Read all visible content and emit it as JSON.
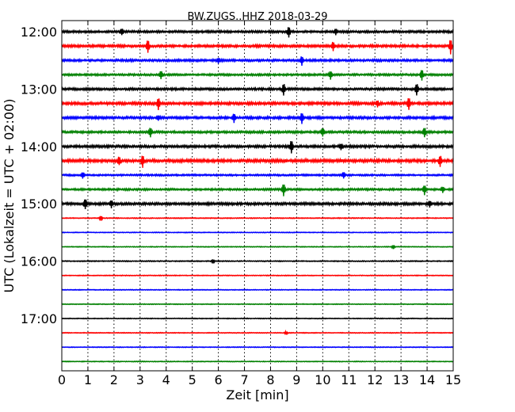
{
  "chart_data": {
    "type": "line",
    "title": "BW.ZUGS..HHZ 2018-03-29",
    "xlabel": "Zeit  [min]",
    "ylabel": "UTC (Lokalzeit = UTC + 02:00)",
    "xlim": [
      0,
      15
    ],
    "xticks": [
      "0",
      "1",
      "2",
      "3",
      "4",
      "5",
      "6",
      "7",
      "8",
      "9",
      "10",
      "11",
      "12",
      "13",
      "14",
      "15"
    ],
    "yticks": [
      "12:00",
      "13:00",
      "14:00",
      "15:00",
      "16:00",
      "17:00"
    ],
    "grid": true,
    "colors": [
      "#000000",
      "#ff0000",
      "#0000ff",
      "#008000"
    ],
    "traces": [
      {
        "start": "12:00",
        "color": "#000000",
        "amp": 0.9,
        "spikes": [
          [
            8.7,
            2.2
          ],
          [
            2.3,
            1.2
          ],
          [
            10.5,
            1.1
          ]
        ]
      },
      {
        "start": "12:15",
        "color": "#ff0000",
        "amp": 1.0,
        "spikes": [
          [
            3.3,
            2.6
          ],
          [
            10.4,
            1.8
          ],
          [
            14.9,
            3.0
          ]
        ]
      },
      {
        "start": "12:30",
        "color": "#0000ff",
        "amp": 0.9,
        "spikes": [
          [
            9.2,
            1.8
          ],
          [
            6.0,
            1.0
          ]
        ]
      },
      {
        "start": "12:45",
        "color": "#008000",
        "amp": 0.8,
        "spikes": [
          [
            3.8,
            1.6
          ],
          [
            10.3,
            1.7
          ],
          [
            13.8,
            2.2
          ]
        ]
      },
      {
        "start": "13:00",
        "color": "#000000",
        "amp": 0.9,
        "spikes": [
          [
            8.5,
            2.4
          ],
          [
            13.6,
            2.4
          ]
        ]
      },
      {
        "start": "13:15",
        "color": "#ff0000",
        "amp": 1.1,
        "spikes": [
          [
            3.7,
            2.4
          ],
          [
            12.1,
            1.3
          ],
          [
            13.3,
            2.4
          ]
        ]
      },
      {
        "start": "13:30",
        "color": "#0000ff",
        "amp": 1.0,
        "spikes": [
          [
            6.6,
            1.8
          ],
          [
            9.2,
            2.2
          ],
          [
            3.7,
            1.0
          ]
        ]
      },
      {
        "start": "13:45",
        "color": "#008000",
        "amp": 0.9,
        "spikes": [
          [
            3.4,
            2.0
          ],
          [
            10.0,
            1.6
          ],
          [
            13.9,
            2.0
          ]
        ]
      },
      {
        "start": "14:00",
        "color": "#000000",
        "amp": 1.0,
        "spikes": [
          [
            8.8,
            2.6
          ],
          [
            10.7,
            1.2
          ]
        ]
      },
      {
        "start": "14:15",
        "color": "#ff0000",
        "amp": 1.2,
        "spikes": [
          [
            3.1,
            2.4
          ],
          [
            2.2,
            1.6
          ],
          [
            14.5,
            2.2
          ]
        ]
      },
      {
        "start": "14:30",
        "color": "#0000ff",
        "amp": 0.7,
        "spikes": [
          [
            0.8,
            1.3
          ],
          [
            10.8,
            1.3
          ]
        ]
      },
      {
        "start": "14:45",
        "color": "#008000",
        "amp": 0.8,
        "spikes": [
          [
            8.5,
            2.6
          ],
          [
            13.9,
            2.0
          ],
          [
            14.6,
            1.2
          ]
        ]
      },
      {
        "start": "15:00",
        "color": "#000000",
        "amp": 1.0,
        "spikes": [
          [
            0.9,
            2.0
          ],
          [
            1.9,
            1.4
          ],
          [
            14.1,
            1.2
          ]
        ]
      },
      {
        "start": "15:15",
        "color": "#ff0000",
        "amp": 0.35,
        "spikes": [
          [
            1.5,
            1.0
          ]
        ]
      },
      {
        "start": "15:30",
        "color": "#0000ff",
        "amp": 0.3,
        "spikes": []
      },
      {
        "start": "15:45",
        "color": "#008000",
        "amp": 0.3,
        "spikes": [
          [
            12.7,
            0.8
          ]
        ]
      },
      {
        "start": "16:00",
        "color": "#000000",
        "amp": 0.4,
        "spikes": [
          [
            5.8,
            0.8
          ]
        ]
      },
      {
        "start": "16:15",
        "color": "#ff0000",
        "amp": 0.3,
        "spikes": []
      },
      {
        "start": "16:30",
        "color": "#0000ff",
        "amp": 0.3,
        "spikes": []
      },
      {
        "start": "16:45",
        "color": "#008000",
        "amp": 0.3,
        "spikes": []
      },
      {
        "start": "17:00",
        "color": "#000000",
        "amp": 0.3,
        "spikes": []
      },
      {
        "start": "17:15",
        "color": "#ff0000",
        "amp": 0.3,
        "spikes": [
          [
            8.6,
            0.7
          ]
        ]
      },
      {
        "start": "17:30",
        "color": "#0000ff",
        "amp": 0.3,
        "spikes": []
      },
      {
        "start": "17:45",
        "color": "#008000",
        "amp": 0.3,
        "spikes": []
      }
    ]
  }
}
